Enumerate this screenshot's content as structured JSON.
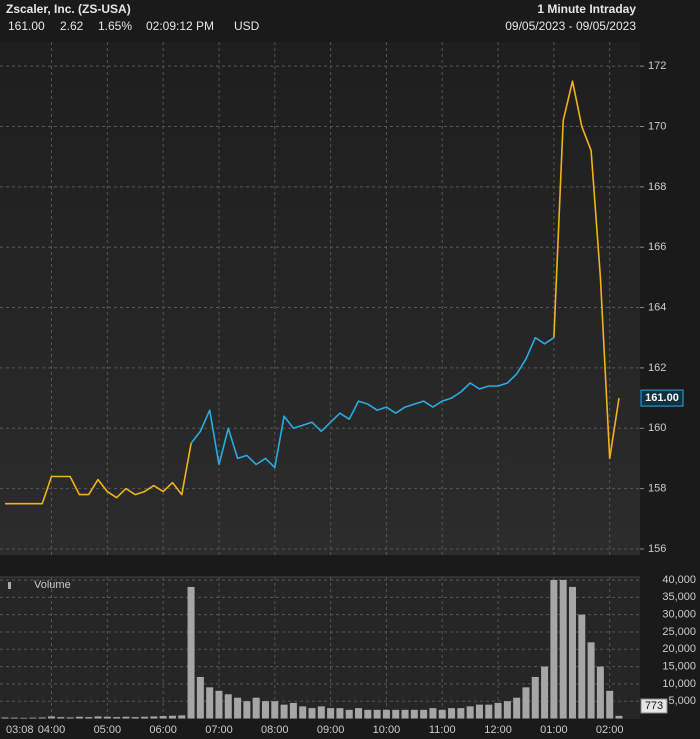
{
  "chart_data": {
    "type": "line",
    "title": "Zscaler, Inc. (ZS-USA)",
    "subtitle": "1 Minute Intraday",
    "quote": [
      "161.00",
      "2.62",
      "1.65%",
      "02:09:12 PM",
      "USD"
    ],
    "date_range": "09/05/2023 - 09/05/2023",
    "categories": [
      "03:08",
      null,
      null,
      null,
      null,
      "04:00",
      null,
      null,
      null,
      null,
      null,
      "05:00",
      null,
      null,
      null,
      null,
      null,
      "06:00",
      null,
      null,
      null,
      null,
      null,
      "07:00",
      null,
      null,
      null,
      null,
      null,
      "08:00",
      null,
      null,
      null,
      null,
      null,
      "09:00",
      null,
      null,
      null,
      null,
      null,
      "10:00",
      null,
      null,
      null,
      null,
      null,
      "11:00",
      null,
      null,
      null,
      null,
      null,
      "12:00",
      null,
      null,
      null,
      null,
      null,
      "01:00",
      null,
      null,
      null,
      null,
      null,
      "02:00",
      null
    ],
    "series": [
      {
        "color": "#f2b21c",
        "values": [
          157.5,
          157.5,
          157.5,
          157.5,
          157.5,
          158.4,
          158.4,
          158.4,
          157.8,
          157.8,
          158.3,
          157.9,
          157.7,
          158.0,
          157.8,
          157.9,
          158.1,
          157.9,
          158.2,
          157.8,
          159.5,
          null,
          null,
          null,
          null,
          null,
          null,
          null,
          null,
          null,
          null,
          null,
          null,
          null,
          null,
          null,
          null,
          null,
          null,
          null,
          null,
          null,
          null,
          null,
          null,
          null,
          null,
          null,
          null,
          null,
          null,
          null,
          null,
          null,
          null,
          null,
          null,
          null,
          null,
          163.0,
          170.2,
          171.5,
          170.0,
          169.2,
          165.0,
          159.0,
          161.0
        ]
      },
      {
        "color": "#29abe2",
        "values": [
          null,
          null,
          null,
          null,
          null,
          null,
          null,
          null,
          null,
          null,
          null,
          null,
          null,
          null,
          null,
          null,
          null,
          null,
          null,
          null,
          159.5,
          159.9,
          160.6,
          158.8,
          160.0,
          159.0,
          159.1,
          158.8,
          159.0,
          158.7,
          160.4,
          160.0,
          160.1,
          160.2,
          159.9,
          160.2,
          160.5,
          160.3,
          160.9,
          160.8,
          160.6,
          160.7,
          160.5,
          160.7,
          160.8,
          160.9,
          160.7,
          160.9,
          161.0,
          161.2,
          161.5,
          161.3,
          161.4,
          161.4,
          161.5,
          161.8,
          162.3,
          163.0,
          162.8,
          163.0,
          null,
          null,
          null,
          null,
          null,
          null,
          null
        ]
      }
    ],
    "ylim": [
      155.8,
      172.8
    ],
    "yticks": [
      156,
      158,
      160,
      162,
      164,
      166,
      168,
      170,
      172
    ],
    "grid": true,
    "volume": {
      "type": "bar",
      "title": "Volume",
      "color": "#a6a6a6",
      "values": [
        300,
        250,
        200,
        250,
        300,
        600,
        400,
        300,
        500,
        400,
        600,
        500,
        400,
        500,
        400,
        500,
        600,
        700,
        800,
        900,
        38000,
        12000,
        9000,
        8000,
        7000,
        6000,
        5000,
        6000,
        5000,
        5000,
        4000,
        4500,
        3500,
        3000,
        3500,
        3000,
        3000,
        2500,
        3000,
        2500,
        2500,
        2500,
        2500,
        2500,
        2500,
        2500,
        3000,
        2500,
        3000,
        3000,
        3500,
        4000,
        4000,
        4500,
        5000,
        6000,
        9000,
        12000,
        15000,
        40000,
        40000,
        38000,
        30000,
        22000,
        15000,
        8000,
        773
      ],
      "ylim": [
        0,
        40000
      ],
      "yticks": [
        {
          "value": 5000,
          "label": "5,000"
        },
        {
          "value": 10000,
          "label": "10,000"
        },
        {
          "value": 15000,
          "label": "15,000"
        },
        {
          "value": 20000,
          "label": "20,000"
        },
        {
          "value": 25000,
          "label": "25,000"
        },
        {
          "value": 30000,
          "label": "30,000"
        },
        {
          "value": 35000,
          "label": "35,000"
        },
        {
          "value": 40000,
          "label": "40,000"
        }
      ]
    }
  }
}
